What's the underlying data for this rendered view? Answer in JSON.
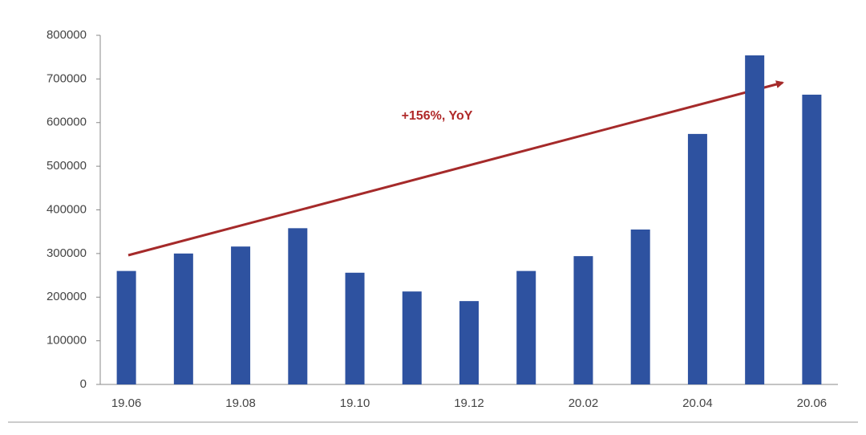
{
  "chart_data": {
    "type": "bar",
    "annotation": "+156%, YoY",
    "categories": [
      "19.06",
      null,
      "19.08",
      null,
      "19.10",
      null,
      "19.12",
      null,
      "20.02",
      null,
      "20.04",
      null,
      "20.06"
    ],
    "values": [
      260000,
      300000,
      316000,
      358000,
      256000,
      213000,
      191000,
      260000,
      294000,
      355000,
      574000,
      754000,
      664000
    ],
    "color": "#2e52a0",
    "ylim": [
      0,
      800000
    ],
    "yticks": [
      0,
      100000,
      200000,
      300000,
      400000,
      500000,
      600000,
      700000,
      800000
    ],
    "grid": false
  }
}
